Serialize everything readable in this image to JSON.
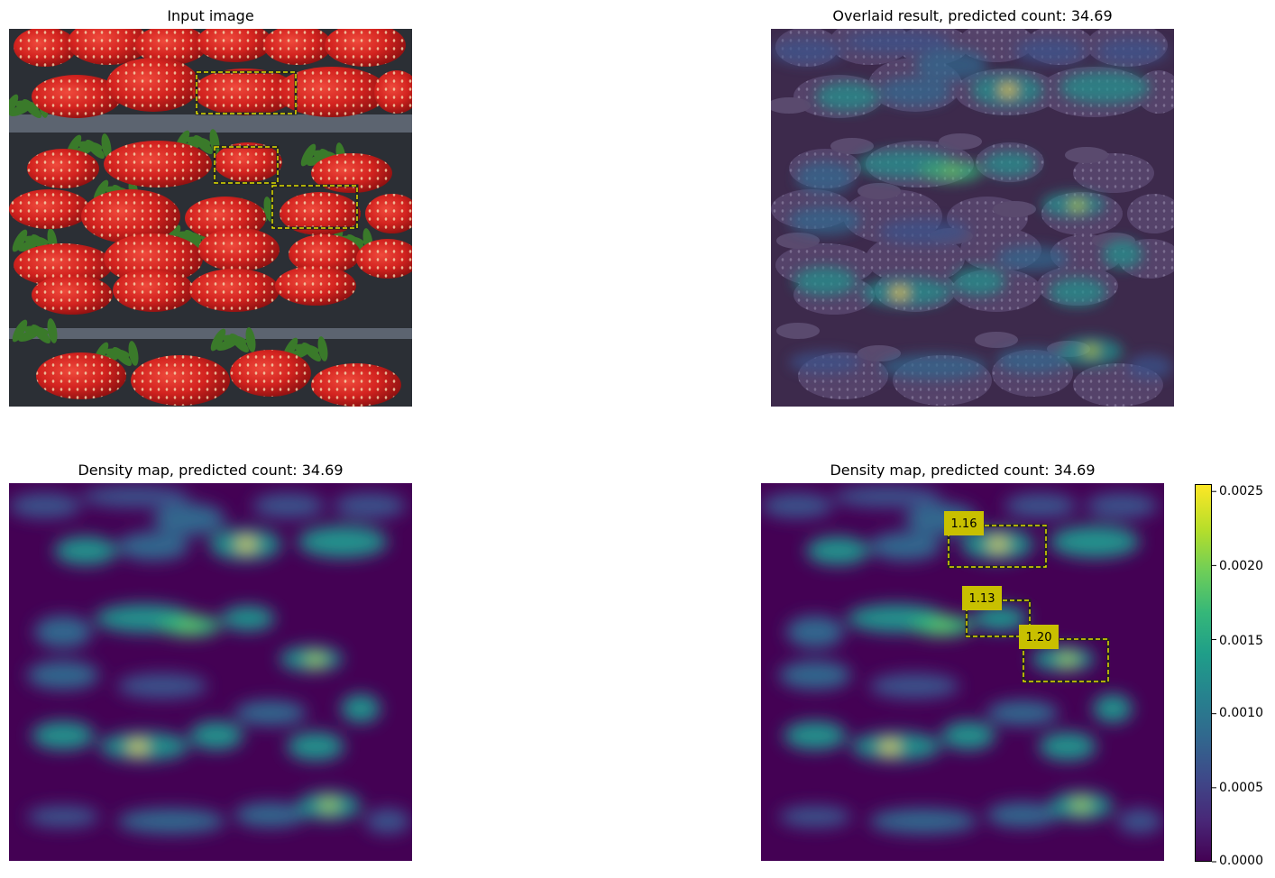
{
  "panels": {
    "input": {
      "title": "Input image"
    },
    "overlay": {
      "title": "Overlaid result, predicted count: 34.69"
    },
    "density": {
      "title": "Density map, predicted count: 34.69"
    },
    "density_boxes": {
      "title": "Density map, predicted count: 34.69",
      "box_labels": [
        "1.16",
        "1.13",
        "1.20"
      ]
    }
  },
  "colorbar": {
    "ticks": [
      "0.0025",
      "0.0020",
      "0.0015",
      "0.0010",
      "0.0005",
      "0.0000"
    ],
    "tick_values": [
      0.0025,
      0.002,
      0.0015,
      0.001,
      0.0005,
      0.0
    ],
    "range": [
      0,
      0.00255
    ],
    "colormap": "viridis"
  },
  "colors": {
    "box": "#c8c800",
    "label_bg": "#c8c000",
    "strawberry": "#c81e1e",
    "leaf": "#3a7a2a",
    "viridis_low": "#440154",
    "viridis_high": "#fde725"
  }
}
